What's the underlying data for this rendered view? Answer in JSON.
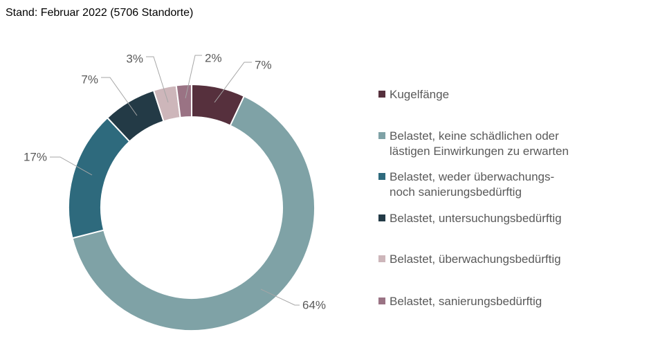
{
  "page": {
    "title": "Stand: Februar 2022 (5706 Standorte)"
  },
  "chart_data": {
    "type": "pie",
    "subtype": "donut",
    "title": "Stand: Februar 2022 (5706 Standorte)",
    "start_angle_deg": 0,
    "direction": "clockwise",
    "legend_position": "right",
    "data_labels": "percent-outside-with-leader-lines",
    "segments": [
      {
        "label": "Kugelfänge",
        "value": 7,
        "display": "7%",
        "color": "#56303D"
      },
      {
        "label": "Belastet, keine schädlichen oder lästigen Einwirkungen zu erwarten",
        "value": 64,
        "display": "64%",
        "color": "#7FA2A6"
      },
      {
        "label": "Belastet, weder überwachungs- noch sanierungsbedürftig",
        "value": 17,
        "display": "17%",
        "color": "#2E6A7D"
      },
      {
        "label": "Belastet, untersuchungsbedürftig",
        "value": 7,
        "display": "7%",
        "color": "#233A46"
      },
      {
        "label": "Belastet, überwachungsbedürftig",
        "value": 3,
        "display": "3%",
        "color": "#CDB6BA"
      },
      {
        "label": "Belastet, sanierungsbedürftig",
        "value": 2,
        "display": "2%",
        "color": "#9A7384"
      }
    ]
  },
  "legend": {
    "items": [
      {
        "label": "Kugelfänge",
        "color": "#56303D"
      },
      {
        "label": "Belastet, keine schädlichen oder\nlästigen Einwirkungen zu erwarten",
        "color": "#7FA2A6"
      },
      {
        "label": "Belastet, weder überwachungs-\nnoch sanierungsbedürftig",
        "color": "#2E6A7D"
      },
      {
        "label": "Belastet, untersuchungsbedürftig",
        "color": "#233A46"
      },
      {
        "label": "Belastet, überwachungsbedürftig",
        "color": "#CDB6BA"
      },
      {
        "label": "Belastet, sanierungsbedürftig",
        "color": "#9A7384"
      }
    ]
  },
  "colors": {
    "text_primary": "#000000",
    "text_secondary": "#595959",
    "leader_line": "#A6A6A6",
    "background": "#FFFFFF"
  }
}
